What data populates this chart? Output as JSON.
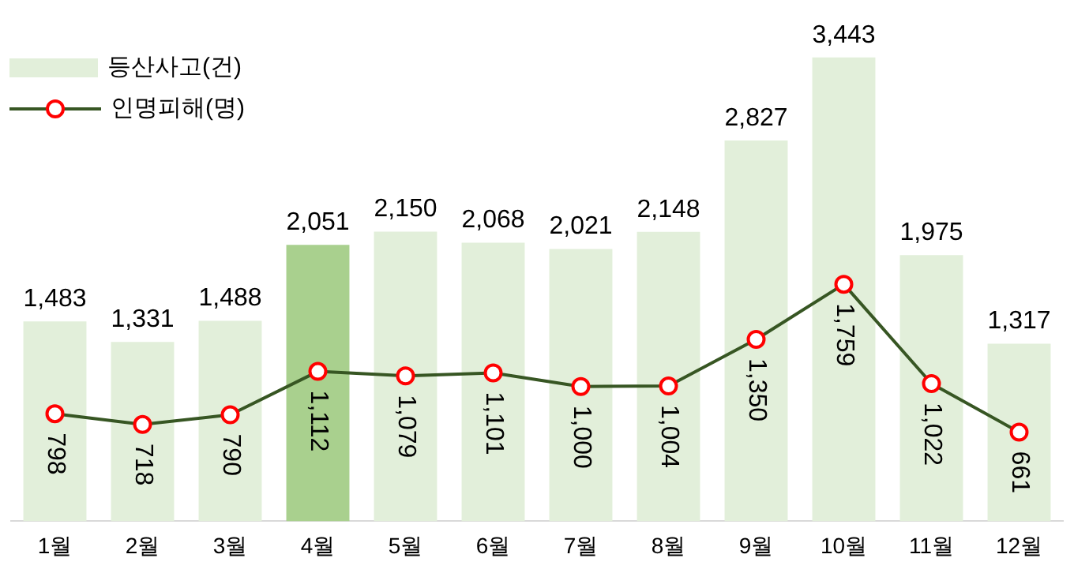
{
  "chart_data": {
    "type": "bar",
    "categories": [
      "1월",
      "2월",
      "3월",
      "4월",
      "5월",
      "6월",
      "7월",
      "8월",
      "9월",
      "10월",
      "11월",
      "12월"
    ],
    "series": [
      {
        "name": "등산사고(건)",
        "color": "#e2efda",
        "colors": [
          "#e2efda",
          "#e2efda",
          "#e2efda",
          "#a9d08e",
          "#e2efda",
          "#e2efda",
          "#e2efda",
          "#e2efda",
          "#e2efda",
          "#e2efda",
          "#e2efda",
          "#e2efda"
        ],
        "values": [
          1483,
          1331,
          1488,
          2051,
          2150,
          2068,
          2021,
          2148,
          2827,
          3443,
          1975,
          1317
        ],
        "value_labels": [
          "1,483",
          "1,331",
          "1,488",
          "2,051",
          "2,150",
          "2,068",
          "2,021",
          "2,148",
          "2,827",
          "3,443",
          "1,975",
          "1,317"
        ]
      },
      {
        "name": "인명피해(명)",
        "type": "line",
        "color": "#375623",
        "values": [
          798,
          718,
          790,
          1112,
          1079,
          1101,
          1000,
          1004,
          1350,
          1759,
          1022,
          661
        ],
        "value_labels": [
          "798",
          "718",
          "790",
          "1,112",
          "1,079",
          "1,101",
          "1,000",
          "1,004",
          "1,350",
          "1,759",
          "1,022",
          "661"
        ]
      }
    ],
    "legend": "top left",
    "grid": false,
    "tick_labels": "x",
    "marker": "circle"
  }
}
